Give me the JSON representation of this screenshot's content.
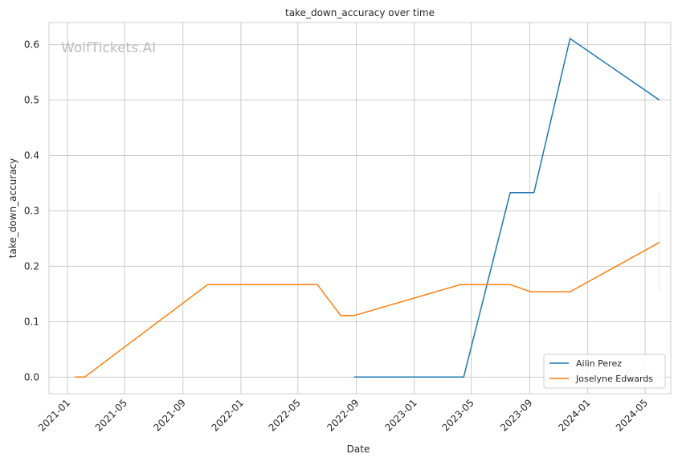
{
  "chart_data": {
    "type": "line",
    "title": "take_down_accuracy over time",
    "xlabel": "Date",
    "ylabel": "take_down_accuracy",
    "watermark": "WolfTickets.AI",
    "x_axis_type": "date",
    "xlim": [
      "2020-11-23",
      "2024-06-24"
    ],
    "ylim": [
      -0.03,
      0.64
    ],
    "x_ticks": [
      "2021-01",
      "2021-05",
      "2021-09",
      "2022-01",
      "2022-05",
      "2022-09",
      "2023-01",
      "2023-05",
      "2023-09",
      "2024-01",
      "2024-05"
    ],
    "y_ticks": [
      0.0,
      0.1,
      0.2,
      0.3,
      0.4,
      0.5,
      0.6
    ],
    "y_tick_labels": [
      "0.0",
      "0.1",
      "0.2",
      "0.3",
      "0.4",
      "0.5",
      "0.6"
    ],
    "grid": true,
    "legend_position": "lower-right",
    "series": [
      {
        "name": "Ailin Perez",
        "color": "#1f77b4",
        "points": [
          {
            "x": "2022-08-27",
            "y": 0.0
          },
          {
            "x": "2023-04-15",
            "y": 0.0
          },
          {
            "x": "2023-07-22",
            "y": 0.333
          },
          {
            "x": "2023-09-10",
            "y": 0.333
          },
          {
            "x": "2023-11-25",
            "y": 0.611
          },
          {
            "x": "2024-05-31",
            "y": 0.5
          }
        ]
      },
      {
        "name": "Joselyne Edwards",
        "color": "#ff7f0e",
        "points": [
          {
            "x": "2021-01-16",
            "y": 0.0
          },
          {
            "x": "2021-02-06",
            "y": 0.0
          },
          {
            "x": "2021-10-23",
            "y": 0.167
          },
          {
            "x": "2022-06-11",
            "y": 0.167
          },
          {
            "x": "2022-07-30",
            "y": 0.111
          },
          {
            "x": "2022-08-27",
            "y": 0.111
          },
          {
            "x": "2023-04-08",
            "y": 0.167
          },
          {
            "x": "2023-07-22",
            "y": 0.167
          },
          {
            "x": "2023-09-03",
            "y": 0.154
          },
          {
            "x": "2023-11-25",
            "y": 0.154
          },
          {
            "x": "2024-05-31",
            "y": 0.243
          }
        ],
        "error_band": {
          "x": "2024-05-31",
          "low": 0.155,
          "high": 0.333
        }
      }
    ]
  }
}
